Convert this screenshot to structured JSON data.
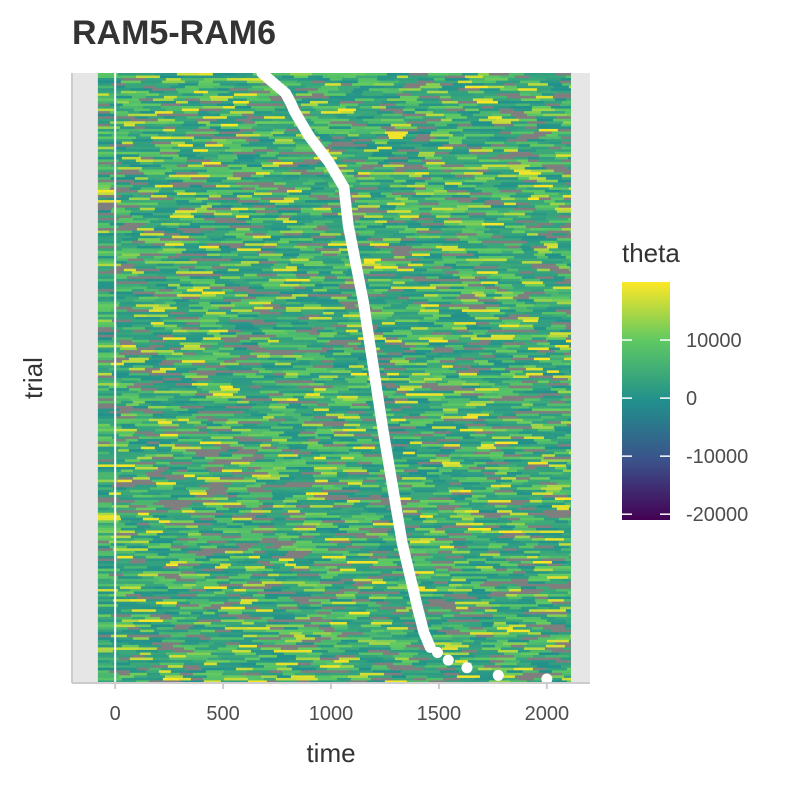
{
  "chart_data": {
    "type": "heatmap",
    "title": "RAM5-RAM6",
    "xlabel": "time",
    "ylabel": "trial",
    "xlim": [
      -200,
      2200
    ],
    "x_ticks": [
      0,
      500,
      1000,
      1500,
      2000
    ],
    "x_tick_labels": [
      "0",
      "500",
      "1000",
      "1500",
      "2000"
    ],
    "heat_x_range": [
      -80,
      2110
    ],
    "n_trials": 240,
    "reference_line_x": 0,
    "legend": {
      "title": "theta",
      "placement": "right",
      "range": [
        -21000,
        20000
      ],
      "ticks": [
        10000,
        0,
        -10000,
        -20000
      ],
      "tick_labels": [
        "10000",
        "0",
        "-10000",
        "-20000"
      ],
      "colors": [
        "#440154",
        "#3b528b",
        "#21908c",
        "#5dc863",
        "#fde725"
      ]
    },
    "na_color": "#7f7f7f",
    "background_color": "#e6e6e6",
    "response_times": {
      "description_points": [
        [
          0,
          680
        ],
        [
          8,
          790
        ],
        [
          12,
          815
        ],
        [
          15,
          830
        ],
        [
          25,
          900
        ],
        [
          35,
          990
        ],
        [
          45,
          1060
        ],
        [
          60,
          1080
        ],
        [
          90,
          1150
        ],
        [
          140,
          1240
        ],
        [
          185,
          1330
        ],
        [
          210,
          1400
        ],
        [
          220,
          1430
        ],
        [
          226,
          1460
        ],
        [
          232,
          1560
        ],
        [
          236,
          1700
        ],
        [
          238,
          1850
        ],
        [
          240,
          2000
        ]
      ],
      "marker_color": "#ffffff"
    }
  }
}
